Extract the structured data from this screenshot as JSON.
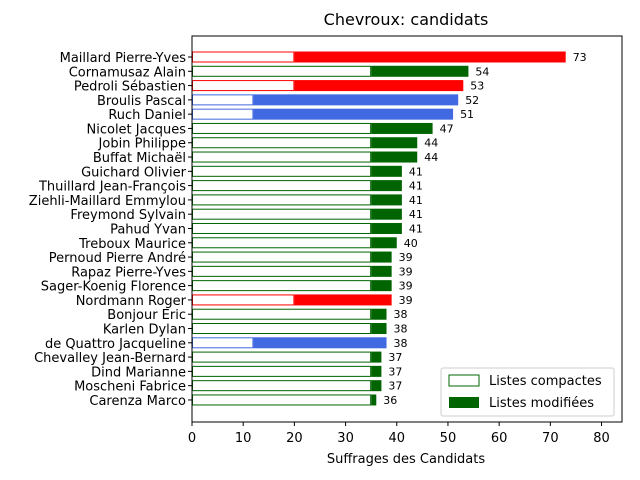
{
  "chart_data": {
    "type": "bar",
    "orientation": "horizontal",
    "title": "Chevroux: candidats",
    "xlabel": "Suffrages des Candidats",
    "xlim": [
      0,
      84
    ],
    "xticks": [
      0,
      10,
      20,
      30,
      40,
      50,
      60,
      70,
      80
    ],
    "grid": false,
    "legend_position": "lower-right",
    "legend": [
      {
        "label": "Listes compactes",
        "style": "outline",
        "color": "#006400"
      },
      {
        "label": "Listes modifiées",
        "style": "filled",
        "color": "#006400"
      }
    ],
    "colors": {
      "red": "#ff0000",
      "green": "#006400",
      "blue": "#4169e1"
    },
    "candidates": [
      {
        "name": "Maillard Pierre-Yves",
        "total": 73,
        "compact": 20,
        "color": "red"
      },
      {
        "name": "Cornamusaz Alain",
        "total": 54,
        "compact": 35,
        "color": "green"
      },
      {
        "name": "Pedroli Sébastien",
        "total": 53,
        "compact": 20,
        "color": "red"
      },
      {
        "name": "Broulis Pascal",
        "total": 52,
        "compact": 12,
        "color": "blue"
      },
      {
        "name": "Ruch Daniel",
        "total": 51,
        "compact": 12,
        "color": "blue"
      },
      {
        "name": "Nicolet Jacques",
        "total": 47,
        "compact": 35,
        "color": "green"
      },
      {
        "name": "Jobin Philippe",
        "total": 44,
        "compact": 35,
        "color": "green"
      },
      {
        "name": "Buffat Michaël",
        "total": 44,
        "compact": 35,
        "color": "green"
      },
      {
        "name": "Guichard Olivier",
        "total": 41,
        "compact": 35,
        "color": "green"
      },
      {
        "name": "Thuillard Jean-François",
        "total": 41,
        "compact": 35,
        "color": "green"
      },
      {
        "name": "Ziehli-Maillard Emmylou",
        "total": 41,
        "compact": 35,
        "color": "green"
      },
      {
        "name": "Freymond Sylvain",
        "total": 41,
        "compact": 35,
        "color": "green"
      },
      {
        "name": "Pahud Yvan",
        "total": 41,
        "compact": 35,
        "color": "green"
      },
      {
        "name": "Treboux Maurice",
        "total": 40,
        "compact": 35,
        "color": "green"
      },
      {
        "name": "Pernoud Pierre André",
        "total": 39,
        "compact": 35,
        "color": "green"
      },
      {
        "name": "Rapaz Pierre-Yves",
        "total": 39,
        "compact": 35,
        "color": "green"
      },
      {
        "name": "Sager-Koenig Florence",
        "total": 39,
        "compact": 35,
        "color": "green"
      },
      {
        "name": "Nordmann Roger",
        "total": 39,
        "compact": 20,
        "color": "red"
      },
      {
        "name": "Bonjour Eric",
        "total": 38,
        "compact": 35,
        "color": "green"
      },
      {
        "name": "Karlen Dylan",
        "total": 38,
        "compact": 35,
        "color": "green"
      },
      {
        "name": "de Quattro Jacqueline",
        "total": 38,
        "compact": 12,
        "color": "blue"
      },
      {
        "name": "Chevalley Jean-Bernard",
        "total": 37,
        "compact": 35,
        "color": "green"
      },
      {
        "name": "Dind Marianne",
        "total": 37,
        "compact": 35,
        "color": "green"
      },
      {
        "name": "Moscheni Fabrice",
        "total": 37,
        "compact": 35,
        "color": "green"
      },
      {
        "name": "Carenza Marco",
        "total": 36,
        "compact": 35,
        "color": "green"
      }
    ]
  }
}
